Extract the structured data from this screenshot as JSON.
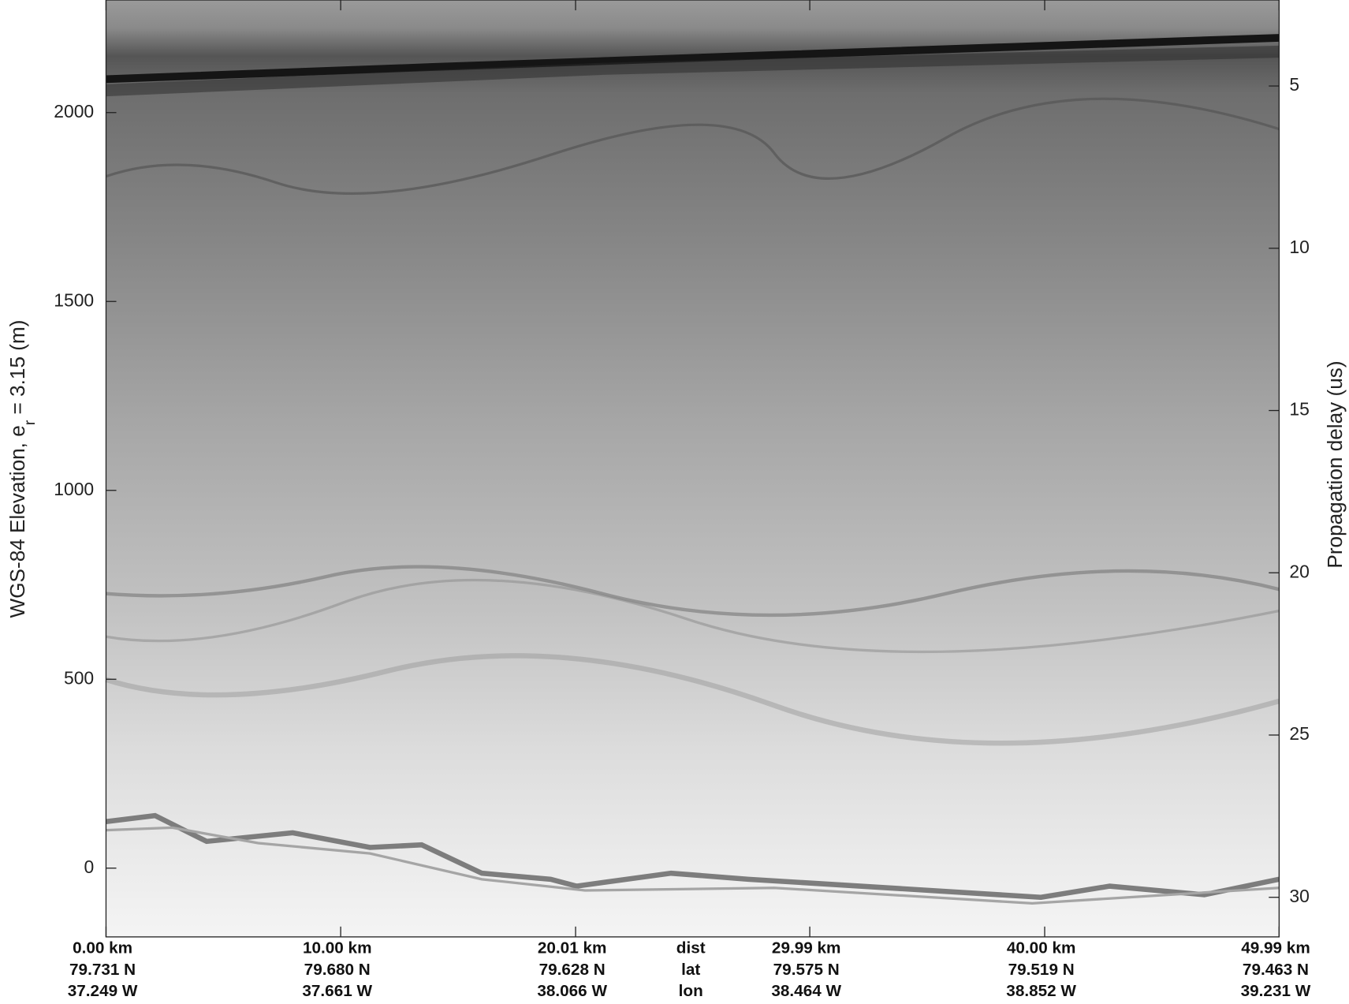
{
  "chart_data": {
    "type": "radargram",
    "ylabel": "WGS-84 Elevation, e",
    "ylabel_sub": "r",
    "ylabel_end": " = 3.15 (m)",
    "y2label": "Propagation delay (us)",
    "ylim": [
      2298,
      -182
    ],
    "yticks": [
      0,
      500,
      1000,
      1500,
      2000
    ],
    "y2lim": [
      2.35,
      31.22
    ],
    "y2ticks": [
      5,
      10,
      15,
      20,
      25,
      30
    ],
    "xlim": [
      0,
      49.99
    ],
    "xticks": [
      {
        "value": 0,
        "label": "0.00 km"
      },
      {
        "value": 10,
        "label": "10.00 km"
      },
      {
        "value": 20.01,
        "label": "20.01 km"
      },
      {
        "value": 29.99,
        "label": "29.99 km"
      },
      {
        "value": 40,
        "label": "40.00 km"
      },
      {
        "value": 49.99,
        "label": "49.99 km"
      }
    ],
    "lat_labels": [
      "79.731 N",
      "79.680 N",
      "79.628 N",
      "79.575 N",
      "79.519 N",
      "79.463 N"
    ],
    "lon_labels": [
      "37.249 W",
      "37.661 W",
      "38.066 W",
      "38.464 W",
      "38.852 W",
      "39.231 W"
    ],
    "row_labels": [
      "dist",
      "lat",
      "lon"
    ],
    "grid": false
  }
}
